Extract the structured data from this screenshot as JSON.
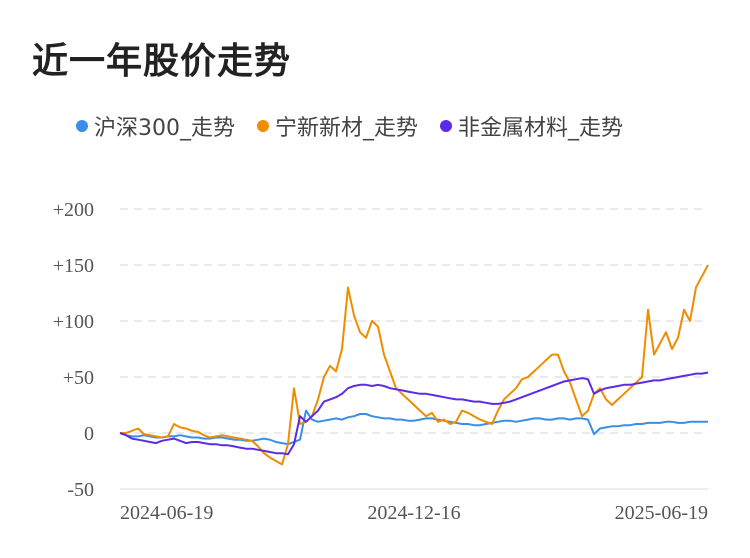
{
  "title": "近一年股价走势",
  "chart_data": {
    "type": "line",
    "ylim": [
      -50,
      200
    ],
    "yticks": [
      "+200",
      "+150",
      "+100",
      "+50",
      "0",
      "-50"
    ],
    "ytick_values": [
      200,
      150,
      100,
      50,
      0,
      -50
    ],
    "xticks": [
      "2024-06-19",
      "2024-12-16",
      "2025-06-19"
    ],
    "grid": true,
    "legend": "top",
    "series": [
      {
        "name": "沪深300_走势",
        "color": "#3a8ee6",
        "values": [
          0,
          -2,
          -3,
          -3,
          -2,
          -3,
          -4,
          -4,
          -3,
          -3,
          -2,
          -3,
          -4,
          -4,
          -5,
          -5,
          -4,
          -4,
          -5,
          -6,
          -6,
          -7,
          -7,
          -6,
          -5,
          -6,
          -8,
          -9,
          -10,
          -8,
          -6,
          20,
          12,
          10,
          11,
          12,
          13,
          12,
          14,
          15,
          17,
          17,
          15,
          14,
          13,
          13,
          12,
          12,
          11,
          11,
          12,
          13,
          13,
          12,
          11,
          10,
          9,
          8,
          8,
          7,
          7,
          8,
          9,
          10,
          11,
          11,
          10,
          11,
          12,
          13,
          13,
          12,
          12,
          13,
          13,
          12,
          13,
          13,
          12,
          -1,
          4,
          5,
          6,
          6,
          7,
          7,
          8,
          8,
          9,
          9,
          9,
          10,
          10,
          9,
          9,
          10,
          10,
          10,
          10
        ]
      },
      {
        "name": "宁新新材_走势",
        "color": "#f08c00",
        "values": [
          0,
          0,
          2,
          4,
          -1,
          -2,
          -3,
          -4,
          -3,
          8,
          5,
          4,
          2,
          1,
          -2,
          -4,
          -3,
          -2,
          -3,
          -4,
          -5,
          -6,
          -7,
          -12,
          -18,
          -22,
          -25,
          -28,
          -10,
          40,
          8,
          10,
          15,
          30,
          50,
          60,
          55,
          75,
          130,
          105,
          90,
          85,
          100,
          95,
          70,
          55,
          40,
          35,
          30,
          25,
          20,
          15,
          18,
          10,
          12,
          8,
          10,
          20,
          18,
          15,
          12,
          10,
          8,
          20,
          30,
          35,
          40,
          48,
          50,
          55,
          60,
          65,
          70,
          70,
          55,
          45,
          30,
          15,
          20,
          35,
          40,
          30,
          25,
          30,
          35,
          40,
          45,
          50,
          110,
          70,
          80,
          90,
          75,
          85,
          110,
          100,
          130,
          140,
          150
        ]
      },
      {
        "name": "非金属材料_走势",
        "color": "#5b2ce8",
        "values": [
          0,
          -2,
          -5,
          -6,
          -7,
          -8,
          -9,
          -7,
          -6,
          -5,
          -7,
          -9,
          -8,
          -8,
          -9,
          -10,
          -10,
          -11,
          -11,
          -12,
          -13,
          -14,
          -14,
          -15,
          -16,
          -17,
          -18,
          -18,
          -19,
          -10,
          15,
          10,
          15,
          20,
          28,
          30,
          32,
          35,
          40,
          42,
          43,
          43,
          42,
          43,
          42,
          40,
          39,
          38,
          37,
          36,
          35,
          35,
          34,
          33,
          32,
          31,
          30,
          30,
          29,
          28,
          28,
          27,
          26,
          26,
          27,
          28,
          30,
          32,
          34,
          36,
          38,
          40,
          42,
          44,
          46,
          47,
          48,
          49,
          48,
          35,
          38,
          40,
          41,
          42,
          43,
          43,
          44,
          45,
          46,
          47,
          47,
          48,
          49,
          50,
          51,
          52,
          53,
          53,
          54
        ]
      }
    ]
  }
}
